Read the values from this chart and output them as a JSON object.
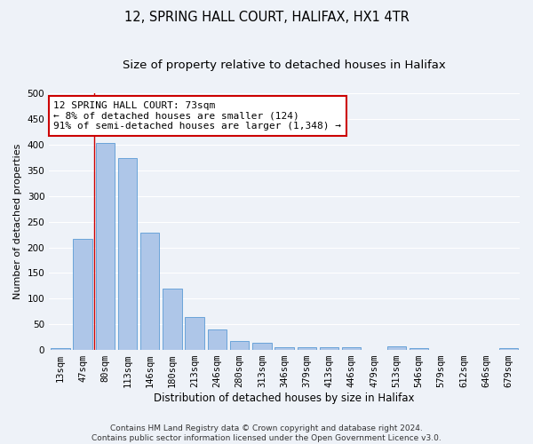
{
  "title": "12, SPRING HALL COURT, HALIFAX, HX1 4TR",
  "subtitle": "Size of property relative to detached houses in Halifax",
  "xlabel": "Distribution of detached houses by size in Halifax",
  "ylabel": "Number of detached properties",
  "categories": [
    "13sqm",
    "47sqm",
    "80sqm",
    "113sqm",
    "146sqm",
    "180sqm",
    "213sqm",
    "246sqm",
    "280sqm",
    "313sqm",
    "346sqm",
    "379sqm",
    "413sqm",
    "446sqm",
    "479sqm",
    "513sqm",
    "546sqm",
    "579sqm",
    "612sqm",
    "646sqm",
    "679sqm"
  ],
  "values": [
    3,
    216,
    403,
    374,
    228,
    120,
    65,
    40,
    18,
    14,
    6,
    5,
    5,
    5,
    0,
    7,
    4,
    0,
    0,
    0,
    3
  ],
  "bar_color": "#aec6e8",
  "bar_edge_color": "#5b9bd5",
  "vline_x": 1.5,
  "vline_color": "#cc0000",
  "ylim": [
    0,
    500
  ],
  "yticks": [
    0,
    50,
    100,
    150,
    200,
    250,
    300,
    350,
    400,
    450,
    500
  ],
  "annotation_text": "12 SPRING HALL COURT: 73sqm\n← 8% of detached houses are smaller (124)\n91% of semi-detached houses are larger (1,348) →",
  "annotation_box_color": "#ffffff",
  "annotation_box_edgecolor": "#cc0000",
  "footer_text": "Contains HM Land Registry data © Crown copyright and database right 2024.\nContains public sector information licensed under the Open Government Licence v3.0.",
  "background_color": "#eef2f8",
  "grid_color": "#ffffff",
  "title_fontsize": 10.5,
  "subtitle_fontsize": 9.5,
  "xlabel_fontsize": 8.5,
  "ylabel_fontsize": 8,
  "tick_fontsize": 7.5,
  "annotation_fontsize": 8,
  "footer_fontsize": 6.5
}
